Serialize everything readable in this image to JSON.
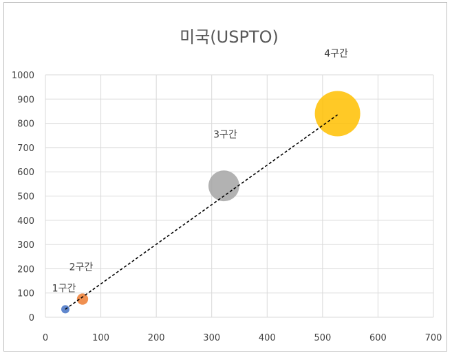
{
  "chart_data": {
    "type": "bubble",
    "title": "미국(USPTO)",
    "xlabel": "",
    "ylabel": "",
    "xlim": [
      0,
      700
    ],
    "ylim": [
      0,
      1000
    ],
    "xticks": [
      0,
      100,
      200,
      300,
      400,
      500,
      600,
      700
    ],
    "yticks": [
      0,
      100,
      200,
      300,
      400,
      500,
      600,
      700,
      800,
      900,
      1000
    ],
    "grid": true,
    "points": [
      {
        "label": "1구간",
        "x": 36,
        "y": 33,
        "size": 1,
        "color": "#4472c4"
      },
      {
        "label": "2구간",
        "x": 67,
        "y": 75,
        "size": 4,
        "color": "#ed7d31"
      },
      {
        "label": "3구간",
        "x": 322,
        "y": 542,
        "size": 30,
        "color": "#a5a5a5"
      },
      {
        "label": "4구간",
        "x": 527,
        "y": 840,
        "size": 65,
        "color": "#ffc000"
      }
    ],
    "trendline": {
      "style": "dashed",
      "color": "#000000",
      "x": [
        36,
        527
      ],
      "y": [
        33,
        835
      ]
    }
  }
}
